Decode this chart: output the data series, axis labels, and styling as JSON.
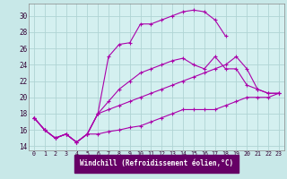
{
  "xlabel": "Windchill (Refroidissement éolien,°C)",
  "bg_color": "#c8e8e8",
  "plot_bg_color": "#d4f0f0",
  "line_color": "#aa00aa",
  "grid_color": "#b0d4d4",
  "xlabel_bg": "#660066",
  "xlabel_fg": "#ffffff",
  "xlim": [
    -0.5,
    23.5
  ],
  "ylim": [
    13.5,
    31.5
  ],
  "xticks": [
    0,
    1,
    2,
    3,
    4,
    5,
    6,
    7,
    8,
    9,
    10,
    11,
    12,
    13,
    14,
    15,
    16,
    17,
    18,
    19,
    20,
    21,
    22,
    23
  ],
  "yticks": [
    14,
    16,
    18,
    20,
    22,
    24,
    26,
    28,
    30
  ],
  "lines": [
    {
      "x": [
        0,
        1,
        2,
        3,
        4,
        5,
        6,
        7,
        8,
        9,
        10,
        11,
        12,
        13,
        14,
        15,
        16,
        17,
        18
      ],
      "y": [
        17.5,
        16.0,
        15.0,
        15.5,
        14.5,
        15.5,
        18.0,
        25.0,
        26.5,
        26.7,
        29.0,
        29.0,
        29.5,
        30.0,
        30.5,
        30.7,
        30.5,
        29.5,
        27.5
      ]
    },
    {
      "x": [
        0,
        1,
        2,
        3,
        4,
        5,
        6,
        7,
        8,
        9,
        10,
        11,
        12,
        13,
        14,
        15,
        16,
        17,
        18,
        19,
        20,
        21,
        22,
        23
      ],
      "y": [
        17.5,
        16.0,
        15.0,
        15.5,
        14.5,
        15.5,
        18.0,
        19.5,
        21.0,
        22.0,
        23.0,
        23.5,
        24.0,
        24.5,
        24.8,
        24.0,
        23.5,
        25.0,
        23.5,
        23.5,
        21.5,
        21.0,
        20.5,
        20.5
      ]
    },
    {
      "x": [
        0,
        1,
        2,
        3,
        4,
        5,
        6,
        7,
        8,
        9,
        10,
        11,
        12,
        13,
        14,
        15,
        16,
        17,
        18,
        19,
        20,
        21,
        22,
        23
      ],
      "y": [
        17.5,
        16.0,
        15.0,
        15.5,
        14.5,
        15.5,
        18.0,
        18.5,
        19.0,
        19.5,
        20.0,
        20.5,
        21.0,
        21.5,
        22.0,
        22.5,
        23.0,
        23.5,
        24.0,
        25.0,
        23.5,
        21.0,
        20.5,
        20.5
      ]
    },
    {
      "x": [
        0,
        1,
        2,
        3,
        4,
        5,
        6,
        7,
        8,
        9,
        10,
        11,
        12,
        13,
        14,
        15,
        16,
        17,
        18,
        19,
        20,
        21,
        22,
        23
      ],
      "y": [
        17.5,
        16.0,
        15.0,
        15.5,
        14.5,
        15.5,
        15.5,
        15.8,
        16.0,
        16.3,
        16.5,
        17.0,
        17.5,
        18.0,
        18.5,
        18.5,
        18.5,
        18.5,
        19.0,
        19.5,
        20.0,
        20.0,
        20.0,
        20.5
      ]
    }
  ]
}
